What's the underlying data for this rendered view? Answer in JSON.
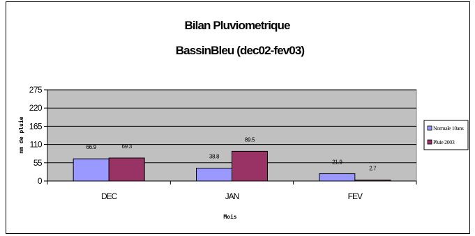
{
  "chart_data": {
    "type": "bar",
    "title": "Bilan Pluviometrique",
    "subtitle": "BassinBleu (dec02-fev03)",
    "xlabel": "Mois",
    "ylabel": "mm de pluie",
    "categories": [
      "DEC",
      "JAN",
      "FEV"
    ],
    "series": [
      {
        "name": "Normale 10ans",
        "values": [
          66.9,
          38.8,
          21.9
        ],
        "labels": [
          "66.9",
          "38.8",
          "21.9"
        ],
        "color": "#9999ff"
      },
      {
        "name": "Pluie 2003",
        "values": [
          69.3,
          89.5,
          2.7
        ],
        "labels": [
          "69.3",
          "89.5",
          "2.7"
        ],
        "color": "#993366"
      }
    ],
    "ylim": [
      0,
      275
    ],
    "yticks": [
      0,
      55,
      110,
      165,
      220,
      275
    ],
    "grid": true,
    "plot_background": "#c0c0c0",
    "legend_position": "right"
  }
}
